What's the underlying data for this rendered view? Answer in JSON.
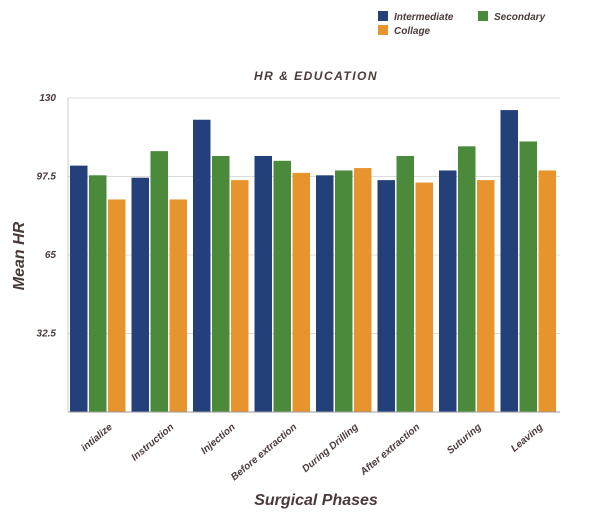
{
  "chart_data": {
    "type": "bar",
    "title": "HR & EDUCATION",
    "xlabel": "Surgical Phases",
    "ylabel": "Mean HR",
    "ylim": [
      0,
      130
    ],
    "yticks": [
      "130",
      "97.5",
      "65",
      "32.5"
    ],
    "ytick_values": [
      130,
      97.5,
      65,
      32.5
    ],
    "categories": [
      "intialize",
      "Instruction",
      "Injection",
      "Before extraction",
      "During Drilling",
      "After extraction",
      "Suturing",
      "Leaving"
    ],
    "series": [
      {
        "name": "Intermediate",
        "color": "#24407a",
        "values": [
          102,
          97,
          121,
          106,
          98,
          96,
          100,
          125
        ]
      },
      {
        "name": "Secondary",
        "color": "#4a8a3a",
        "values": [
          98,
          108,
          106,
          104,
          100,
          106,
          110,
          112
        ]
      },
      {
        "name": "Collage",
        "color": "#e8942e",
        "values": [
          88,
          88,
          96,
          99,
          101,
          95,
          96,
          100
        ]
      }
    ],
    "legend": "top-right"
  }
}
